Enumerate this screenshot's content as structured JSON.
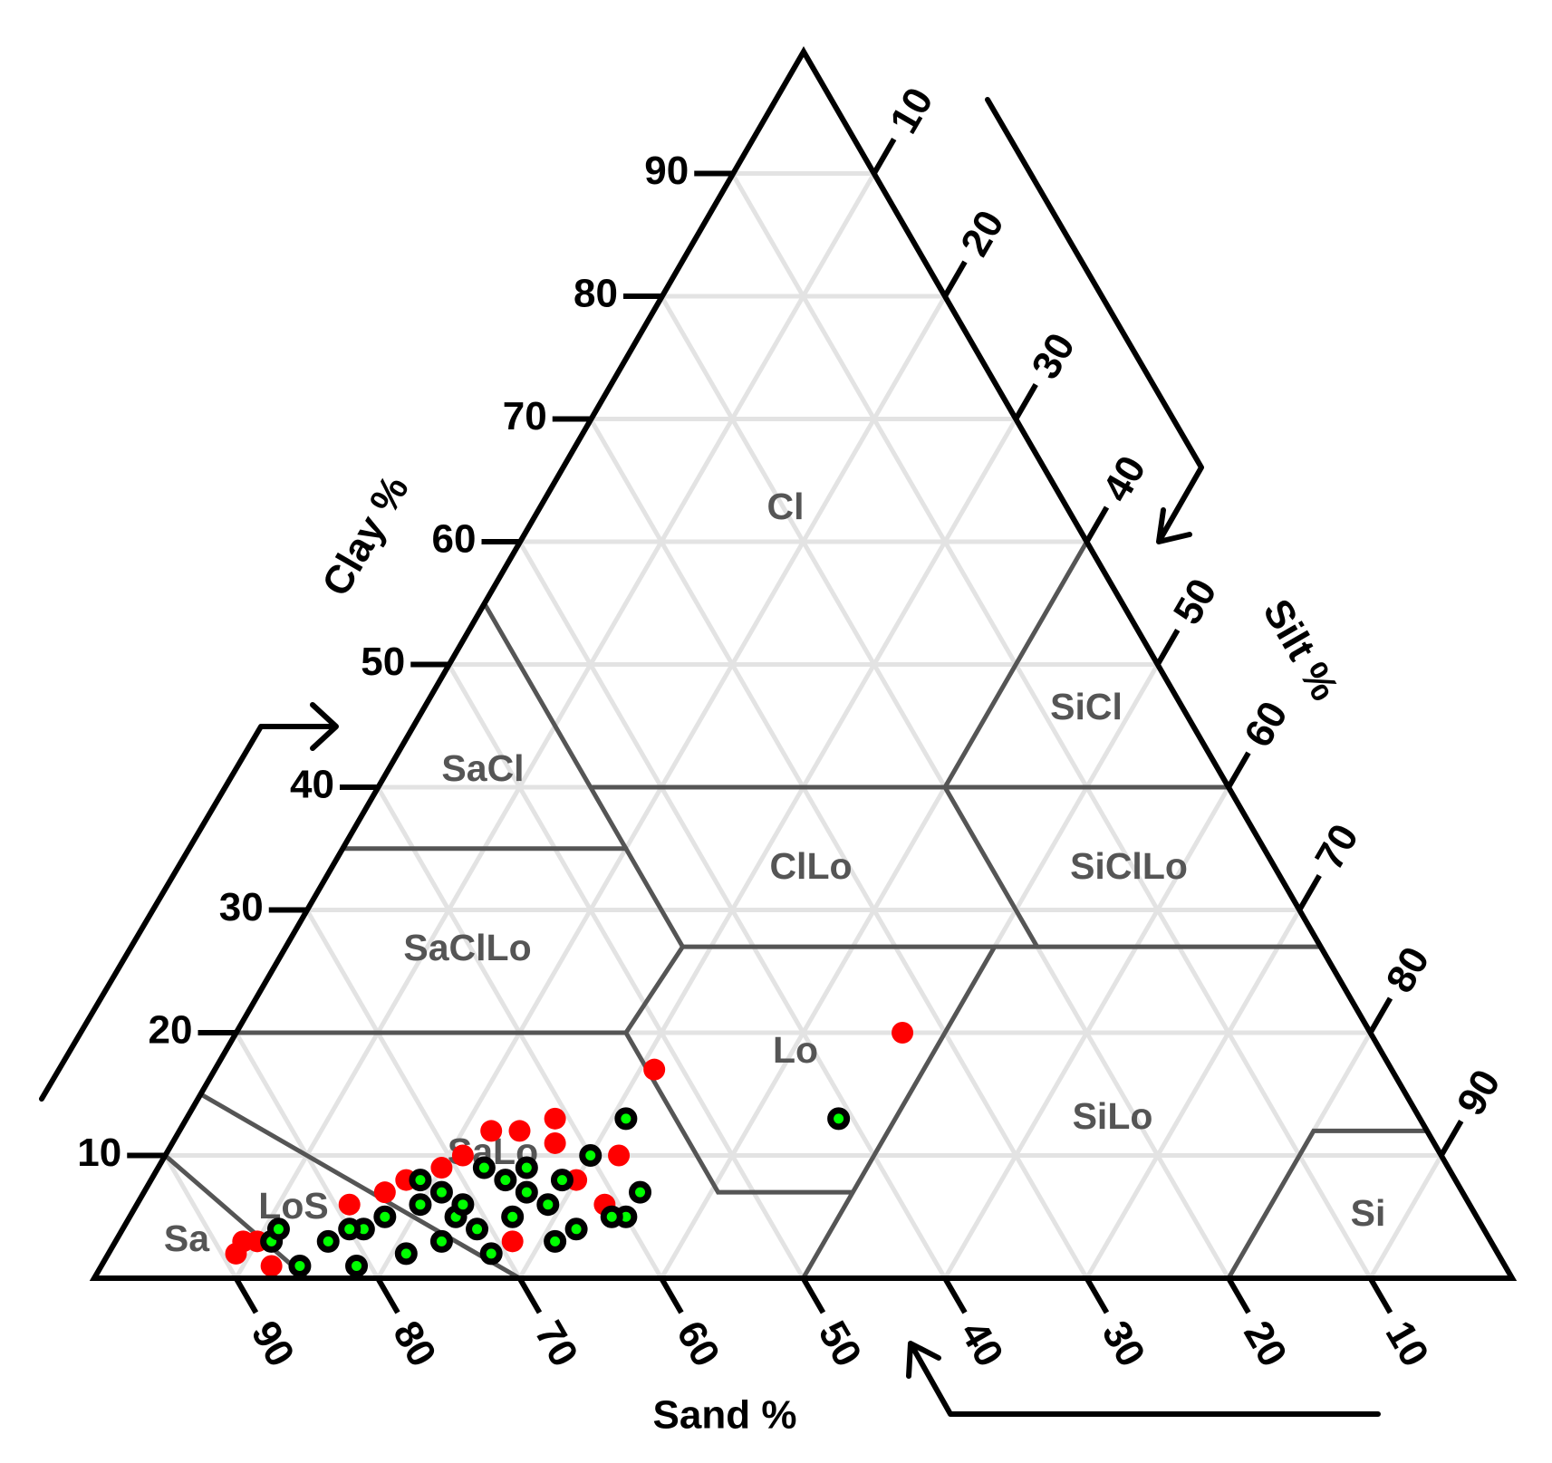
{
  "chart_data": {
    "type": "ternary",
    "axes": {
      "clay": {
        "label": "Clay %",
        "lim": [
          0,
          100
        ],
        "ticks": [
          10,
          20,
          30,
          40,
          50,
          60,
          70,
          80,
          90
        ]
      },
      "silt": {
        "label": "Silt %",
        "lim": [
          0,
          100
        ],
        "ticks": [
          10,
          20,
          30,
          40,
          50,
          60,
          70,
          80,
          90
        ]
      },
      "sand": {
        "label": "Sand %",
        "lim": [
          0,
          100
        ],
        "ticks": [
          10,
          20,
          30,
          40,
          50,
          60,
          70,
          80,
          90
        ]
      }
    },
    "grid": true,
    "regions": [
      "Cl",
      "SiCl",
      "SaCl",
      "ClLo",
      "SiClLo",
      "SaClLo",
      "Lo",
      "SiLo",
      "SaLo",
      "LoS",
      "Sa",
      "Si"
    ],
    "series": [
      {
        "color": "#ff0000",
        "sand": [
          33,
          52,
          61,
          64,
          62,
          58,
          61,
          66,
          69,
          71,
          74,
          76,
          79,
          88,
          89,
          87,
          87,
          69,
          62
        ],
        "silt": [
          47,
          31,
          26,
          24,
          27,
          32,
          33,
          22,
          21,
          20,
          18,
          17,
          15,
          9,
          9,
          12,
          10,
          28,
          30
        ],
        "clay": [
          20,
          17,
          13,
          12,
          11,
          10,
          6,
          12,
          10,
          9,
          8,
          7,
          6,
          3,
          2,
          1,
          3,
          3,
          8
        ]
      },
      {
        "color": "#00ff00",
        "sand": [
          41,
          56,
          60,
          58,
          60,
          61,
          64,
          66,
          63,
          65,
          66,
          67,
          68,
          71,
          71,
          72,
          72,
          73,
          74,
          74,
          77,
          77,
          79,
          80,
          81,
          82,
          85,
          86,
          85,
          71,
          65,
          68
        ],
        "silt": [
          46,
          31,
          30,
          35,
          35,
          34,
          32,
          31,
          29,
          29,
          27,
          25,
          27,
          27,
          25,
          23,
          21,
          19,
          20,
          23,
          21,
          18,
          17,
          16,
          18,
          15,
          14,
          11,
          11,
          23,
          26,
          23
        ],
        "clay": [
          13,
          13,
          10,
          7,
          5,
          5,
          4,
          3,
          8,
          6,
          7,
          8,
          5,
          2,
          4,
          5,
          7,
          8,
          6,
          3,
          2,
          5,
          4,
          4,
          1,
          3,
          1,
          3,
          4,
          6,
          9,
          9
        ]
      }
    ]
  }
}
